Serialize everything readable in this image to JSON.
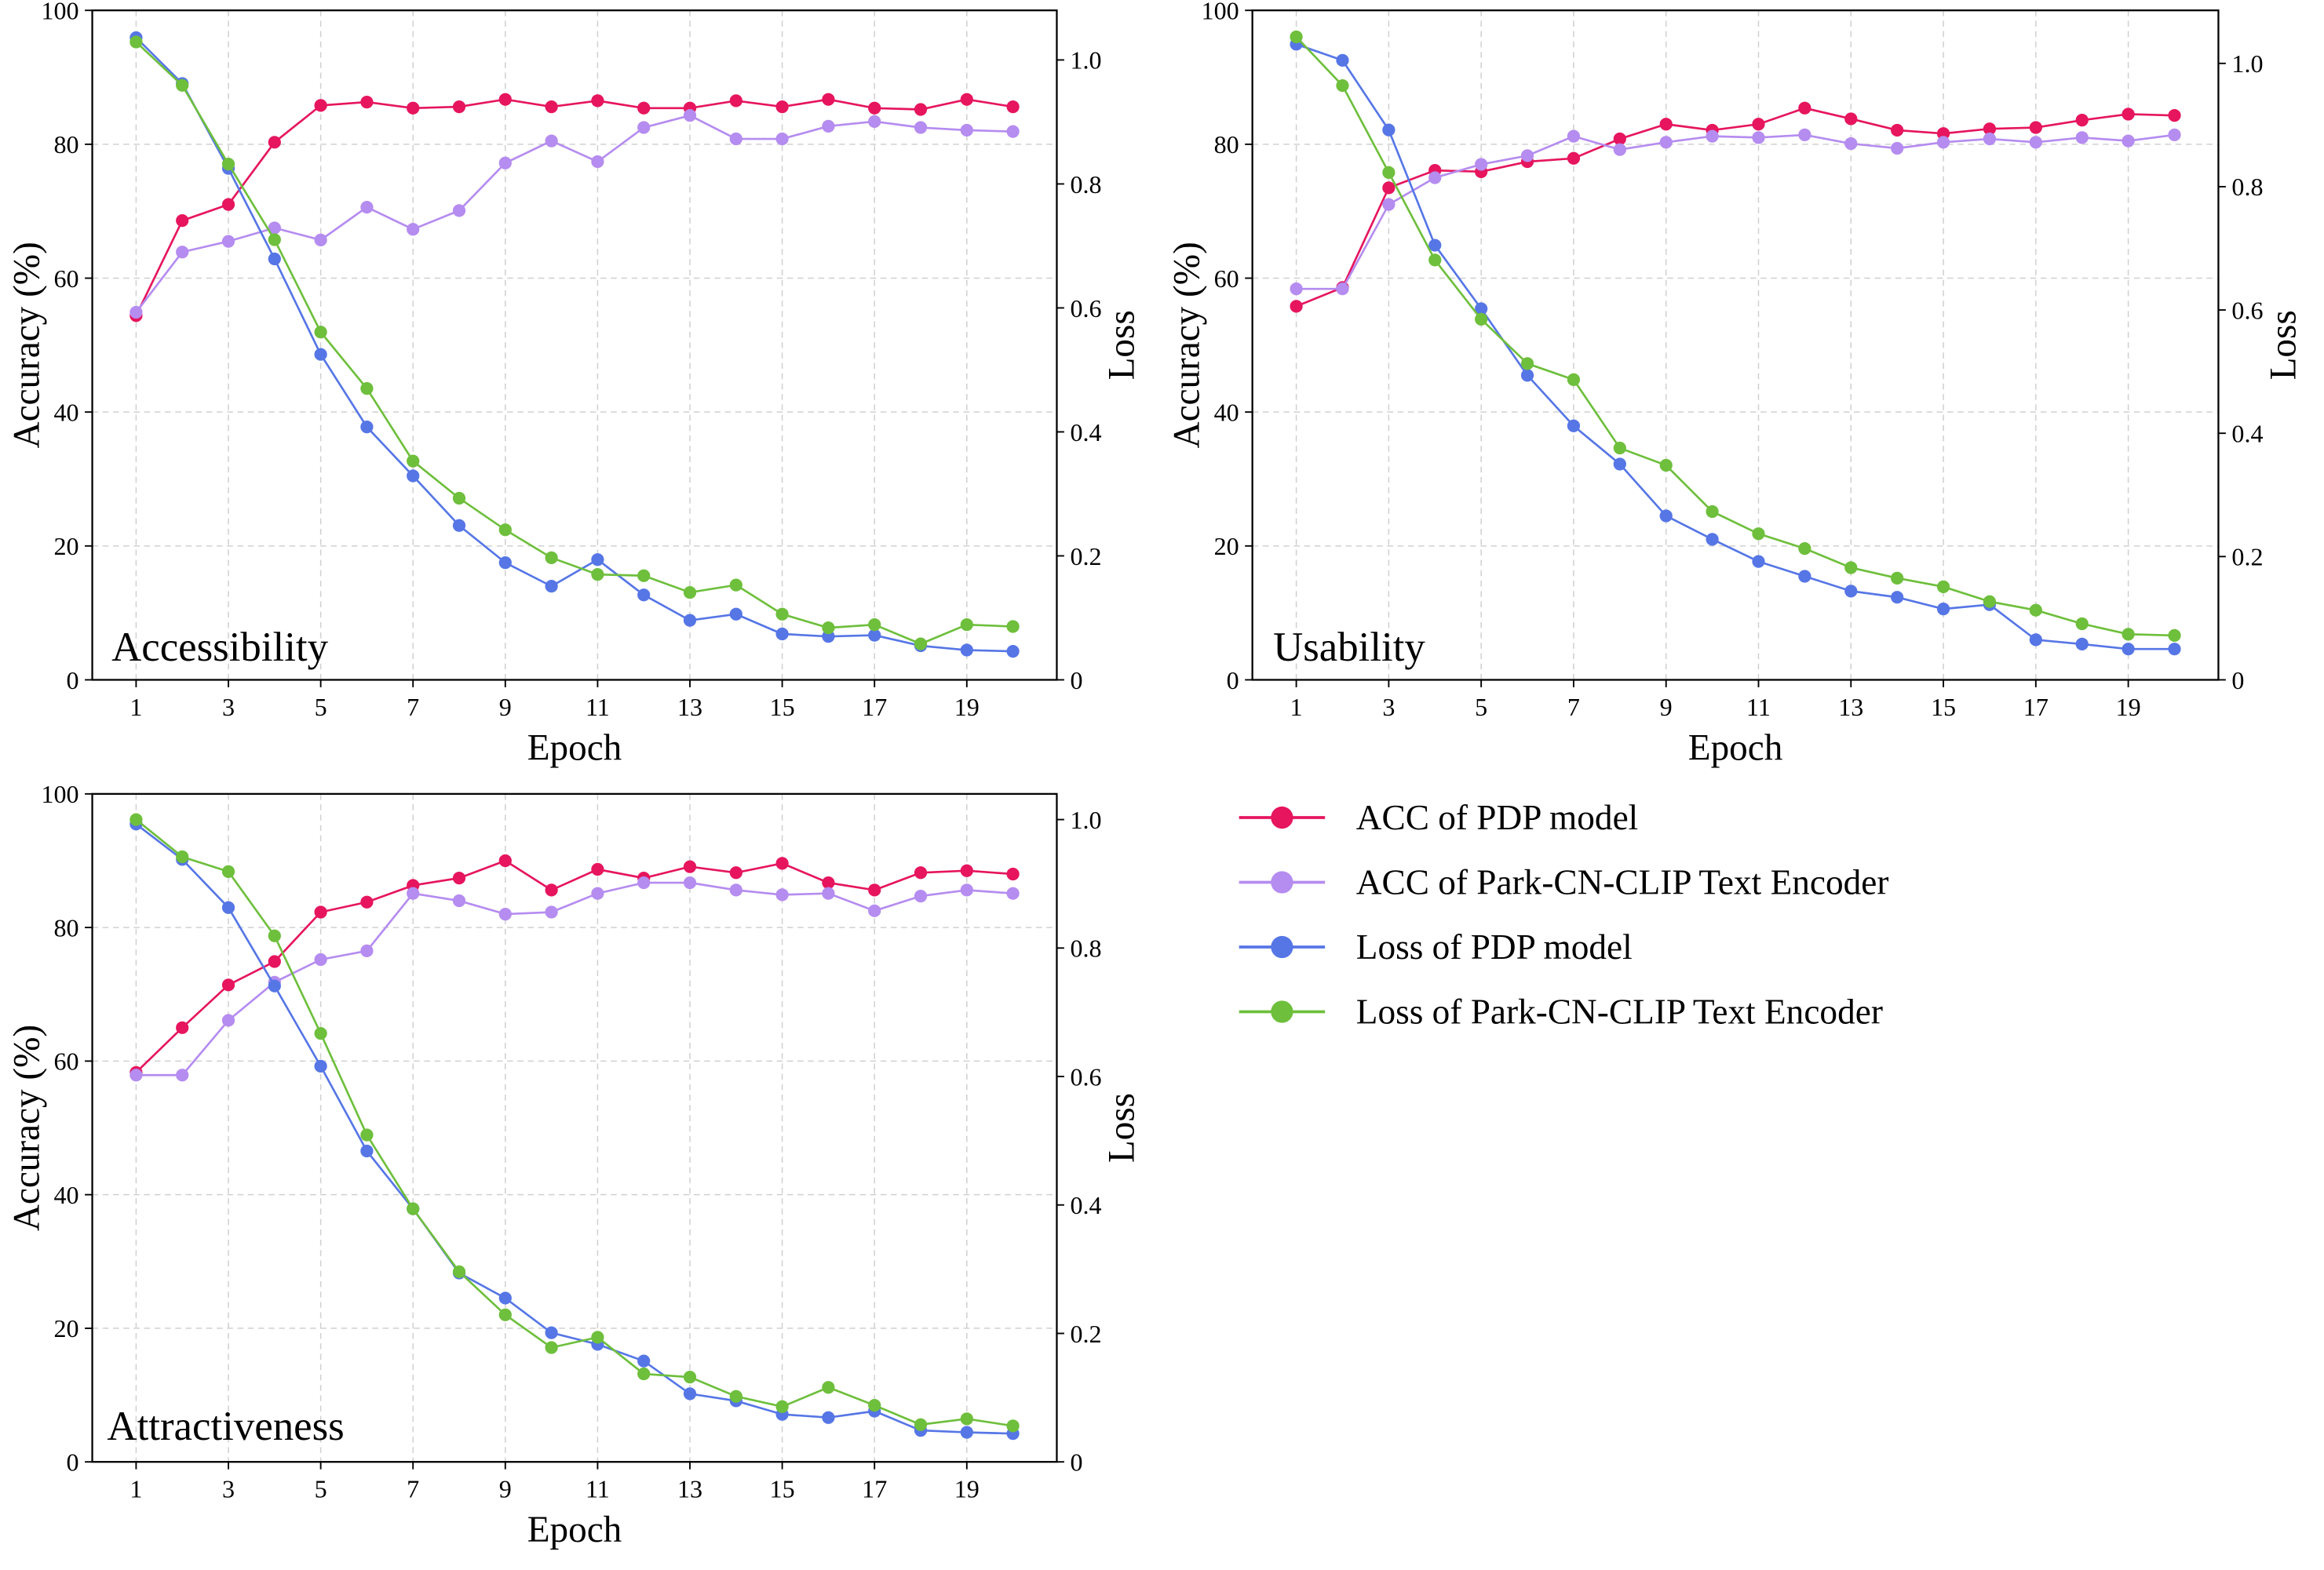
{
  "colors": {
    "acc_pdp": "#e6155e",
    "acc_clip": "#b58cf0",
    "loss_pdp": "#5676e6",
    "loss_clip": "#6ebf3c"
  },
  "legend": {
    "placement": "right-bottom-empty-area",
    "entries": [
      "ACC of PDP model",
      "ACC of Park-CN-CLIP Text Encoder",
      "Loss of PDP model",
      "Loss of Park-CN-CLIP Text Encoder"
    ]
  },
  "chart_data": [
    {
      "type": "line",
      "title": "Accessibility",
      "xlabel": "Epoch",
      "ylabel": "Accuracy (%)",
      "y2label": "Loss",
      "xlim": [
        0.05,
        20.95
      ],
      "ylim": [
        0,
        100
      ],
      "y2lim": [
        0,
        1.08
      ],
      "grid": true,
      "xticks": [
        "1",
        "3",
        "5",
        "7",
        "9",
        "11",
        "13",
        "15",
        "17",
        "19"
      ],
      "yticks": [
        "0",
        "20",
        "40",
        "60",
        "80",
        "100"
      ],
      "y2ticks": [
        "0",
        "0.2",
        "0.4",
        "0.6",
        "0.8",
        "1.0"
      ],
      "x": [
        1,
        2,
        3,
        4,
        5,
        6,
        7,
        8,
        9,
        10,
        11,
        12,
        13,
        14,
        15,
        16,
        17,
        18,
        19,
        20
      ],
      "series": [
        {
          "name": "ACC of PDP model",
          "axis": "left",
          "values": [
            54.4,
            68.6,
            71.0,
            80.3,
            85.8,
            86.3,
            85.4,
            85.6,
            86.7,
            85.6,
            86.5,
            85.4,
            85.4,
            86.5,
            85.6,
            86.7,
            85.4,
            85.2,
            86.7,
            85.6
          ]
        },
        {
          "name": "ACC of Park-CN-CLIP Text Encoder",
          "axis": "left",
          "values": [
            54.9,
            63.9,
            65.5,
            67.5,
            65.7,
            70.6,
            67.3,
            70.1,
            77.2,
            80.5,
            77.4,
            82.5,
            84.3,
            80.8,
            80.8,
            82.7,
            83.4,
            82.5,
            82.1,
            81.9
          ]
        },
        {
          "name": "Loss of PDP model",
          "axis": "right",
          "values": [
            1.036,
            0.962,
            0.825,
            0.679,
            0.525,
            0.408,
            0.329,
            0.249,
            0.189,
            0.151,
            0.194,
            0.137,
            0.096,
            0.106,
            0.074,
            0.07,
            0.072,
            0.055,
            0.048,
            0.046
          ]
        },
        {
          "name": "Loss of Park-CN-CLIP Text Encoder",
          "axis": "right",
          "values": [
            1.029,
            0.959,
            0.832,
            0.71,
            0.561,
            0.47,
            0.353,
            0.293,
            0.242,
            0.197,
            0.17,
            0.168,
            0.141,
            0.153,
            0.106,
            0.084,
            0.089,
            0.058,
            0.089,
            0.086
          ]
        }
      ]
    },
    {
      "type": "line",
      "title": "Usability",
      "xlabel": "Epoch",
      "ylabel": "Accuracy (%)",
      "y2label": "Loss",
      "xlim": [
        0.05,
        20.95
      ],
      "ylim": [
        0,
        100
      ],
      "y2lim": [
        0,
        1.086
      ],
      "grid": true,
      "xticks": [
        "1",
        "3",
        "5",
        "7",
        "9",
        "11",
        "13",
        "15",
        "17",
        "19"
      ],
      "yticks": [
        "0",
        "20",
        "40",
        "60",
        "80",
        "100"
      ],
      "y2ticks": [
        "0",
        "0.2",
        "0.4",
        "0.6",
        "0.8",
        "1.0"
      ],
      "x": [
        1,
        2,
        3,
        4,
        5,
        6,
        7,
        8,
        9,
        10,
        11,
        12,
        13,
        14,
        15,
        16,
        17,
        18,
        19,
        20
      ],
      "series": [
        {
          "name": "ACC of PDP model",
          "axis": "left",
          "values": [
            55.8,
            58.6,
            73.5,
            76.1,
            75.9,
            77.4,
            77.9,
            80.8,
            83.0,
            82.1,
            83.0,
            85.4,
            83.8,
            82.1,
            81.6,
            82.3,
            82.5,
            83.6,
            84.5,
            84.3
          ]
        },
        {
          "name": "ACC of Park-CN-CLIP Text Encoder",
          "axis": "left",
          "values": [
            58.4,
            58.4,
            71.0,
            75.0,
            77.0,
            78.3,
            81.2,
            79.2,
            80.3,
            81.2,
            81.0,
            81.4,
            80.1,
            79.4,
            80.3,
            80.8,
            80.3,
            81.0,
            80.5,
            81.4
          ]
        },
        {
          "name": "Loss of PDP model",
          "axis": "right",
          "values": [
            1.031,
            1.005,
            0.892,
            0.705,
            0.602,
            0.494,
            0.412,
            0.35,
            0.266,
            0.228,
            0.192,
            0.168,
            0.144,
            0.134,
            0.115,
            0.122,
            0.065,
            0.058,
            0.05,
            0.05
          ]
        },
        {
          "name": "Loss of Park-CN-CLIP Text Encoder",
          "axis": "right",
          "values": [
            1.043,
            0.964,
            0.823,
            0.681,
            0.585,
            0.513,
            0.487,
            0.376,
            0.348,
            0.273,
            0.237,
            0.213,
            0.182,
            0.165,
            0.151,
            0.127,
            0.113,
            0.091,
            0.074,
            0.072
          ]
        }
      ]
    },
    {
      "type": "line",
      "title": "Attractiveness",
      "xlabel": "Epoch",
      "ylabel": "Accuracy (%)",
      "y2label": "Loss",
      "xlim": [
        0.05,
        20.95
      ],
      "ylim": [
        0,
        100
      ],
      "y2lim": [
        0,
        1.04
      ],
      "grid": true,
      "xticks": [
        "1",
        "3",
        "5",
        "7",
        "9",
        "11",
        "13",
        "15",
        "17",
        "19"
      ],
      "yticks": [
        "0",
        "20",
        "40",
        "60",
        "80",
        "100"
      ],
      "y2ticks": [
        "0",
        "0.2",
        "0.4",
        "0.6",
        "0.8",
        "1.0"
      ],
      "x": [
        1,
        2,
        3,
        4,
        5,
        6,
        7,
        8,
        9,
        10,
        11,
        12,
        13,
        14,
        15,
        16,
        17,
        18,
        19,
        20
      ],
      "series": [
        {
          "name": "ACC of PDP model",
          "axis": "left",
          "values": [
            58.3,
            65.0,
            71.4,
            74.9,
            82.3,
            83.8,
            86.3,
            87.4,
            90.0,
            85.6,
            88.7,
            87.4,
            89.1,
            88.2,
            89.6,
            86.7,
            85.6,
            88.2,
            88.5,
            88.0
          ]
        },
        {
          "name": "ACC of Park-CN-CLIP Text Encoder",
          "axis": "left",
          "values": [
            57.9,
            57.9,
            66.1,
            71.8,
            75.2,
            76.5,
            85.1,
            84.0,
            82.0,
            82.3,
            85.1,
            86.7,
            86.7,
            85.6,
            84.9,
            85.1,
            82.5,
            84.7,
            85.6,
            85.1
          ]
        },
        {
          "name": "Loss of PDP model",
          "axis": "right",
          "values": [
            0.993,
            0.938,
            0.863,
            0.741,
            0.616,
            0.484,
            0.394,
            0.294,
            0.255,
            0.201,
            0.183,
            0.157,
            0.106,
            0.095,
            0.074,
            0.069,
            0.079,
            0.049,
            0.046,
            0.044
          ]
        },
        {
          "name": "Loss of Park-CN-CLIP Text Encoder",
          "axis": "right",
          "values": [
            1.0,
            0.942,
            0.919,
            0.819,
            0.667,
            0.509,
            0.394,
            0.296,
            0.229,
            0.178,
            0.194,
            0.137,
            0.132,
            0.102,
            0.086,
            0.116,
            0.088,
            0.058,
            0.067,
            0.056
          ]
        }
      ]
    }
  ]
}
